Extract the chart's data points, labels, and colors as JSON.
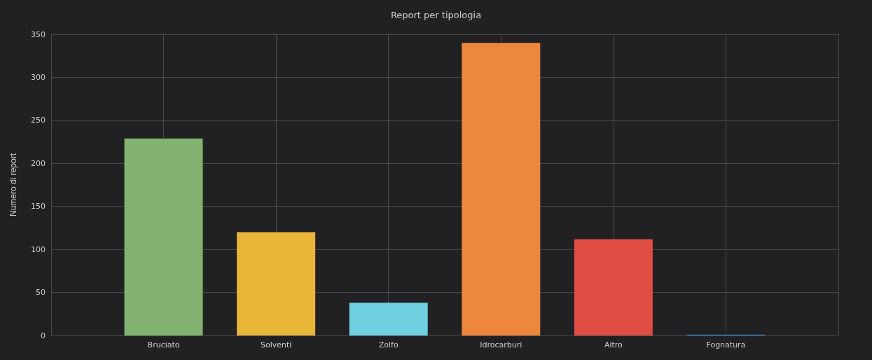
{
  "chart_data": {
    "type": "bar",
    "title": "Report per tipologia",
    "ylabel": "Numero di report",
    "categories": [
      "Bruciato",
      "Solventi",
      "Zolfo",
      "Idrocarburi",
      "Altro",
      "Fognatura"
    ],
    "values": [
      229,
      120,
      38,
      340,
      112,
      1
    ],
    "colors": [
      "#81b26f",
      "#e8b73a",
      "#6fd0e0",
      "#ee873e",
      "#e04d42",
      "#2f7fc1"
    ],
    "ylim": [
      0,
      350
    ],
    "yticks": [
      0,
      50,
      100,
      150,
      200,
      250,
      300,
      350
    ],
    "grid": true
  }
}
